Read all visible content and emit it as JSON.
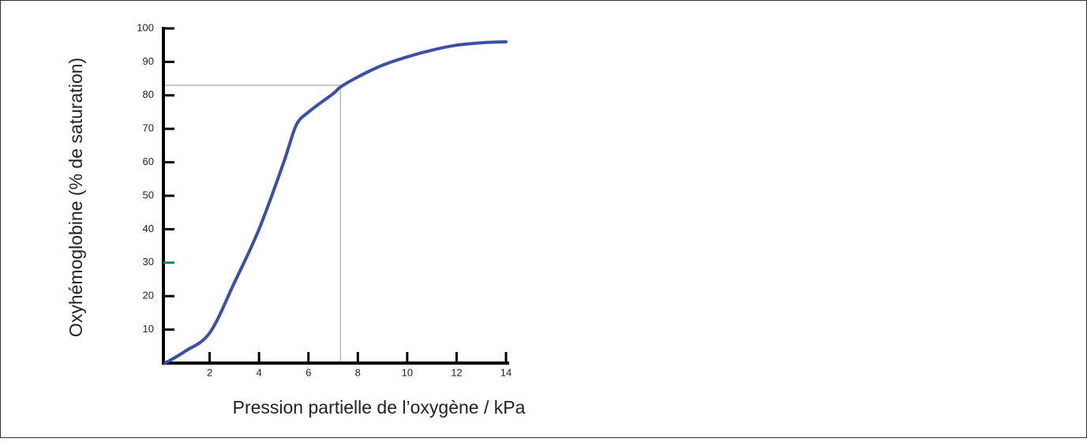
{
  "chart_data": {
    "type": "line",
    "x_label": "Pression partielle de l’oxygène / kPa",
    "y_label": "Oxyhémoglobine (% de saturation)",
    "series": [
      {
        "color": "#3a4fa8",
        "x": [
          0.2,
          1,
          2,
          3,
          4,
          5,
          5.5,
          6,
          7,
          7.3,
          8,
          9,
          10,
          11,
          12,
          13,
          14
        ],
        "values": [
          0,
          3.5,
          9,
          24,
          40,
          60,
          71,
          75,
          80.5,
          82.5,
          85.5,
          89,
          91.5,
          93.5,
          95,
          95.7,
          96
        ]
      }
    ],
    "xlim": [
      0,
      14
    ],
    "xticks": [
      2,
      4,
      6,
      8,
      10,
      12,
      14
    ],
    "ylim": [
      0,
      100
    ],
    "yticks": [
      10,
      20,
      30,
      40,
      50,
      60,
      70,
      80,
      90,
      100
    ],
    "reference": {
      "x": 7.3,
      "y": 83,
      "color": "#b8b8b8"
    },
    "highlighted_ytick": {
      "value": 30,
      "color": "#1b7f5c"
    }
  }
}
